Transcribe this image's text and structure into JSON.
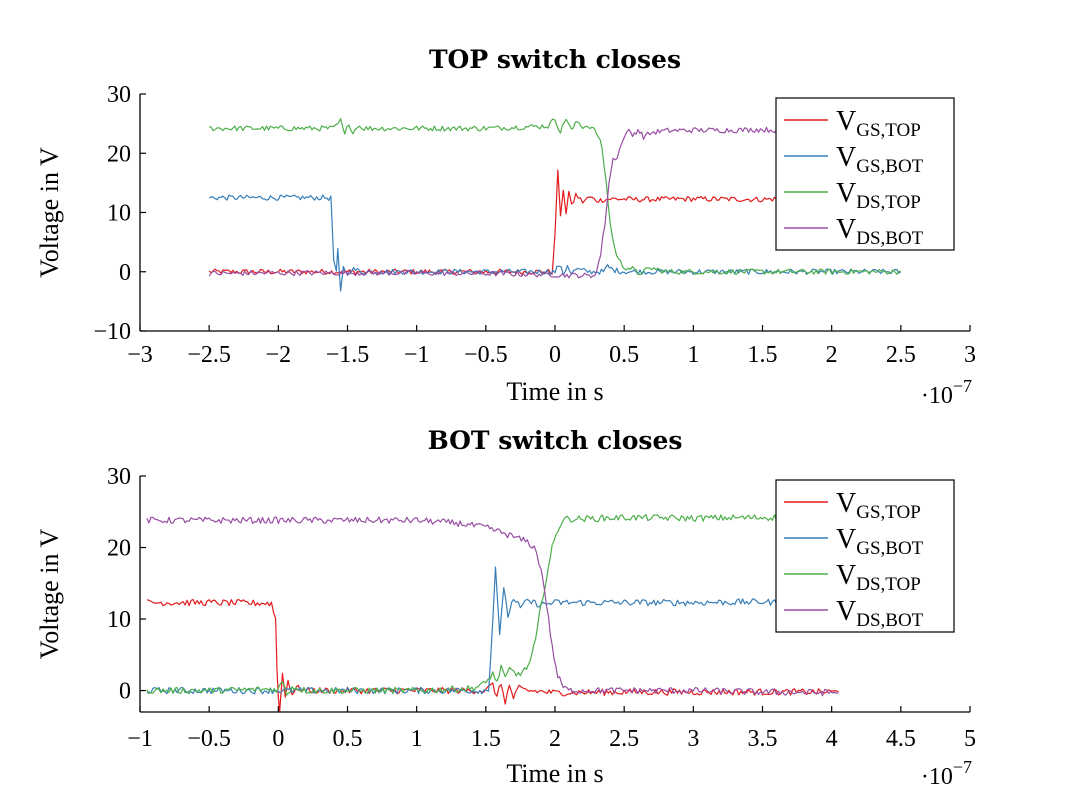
{
  "colors": {
    "V_GS_TOP": "#e41a1c",
    "V_GS_BOT": "#377eb8",
    "V_DS_TOP": "#4daf4a",
    "V_DS_BOT": "#984ea3"
  },
  "chart_data": [
    {
      "type": "line",
      "title": "TOP switch closes",
      "xlabel": "Time in s",
      "ylabel": "Voltage in V",
      "x_multiplier": "·10",
      "x_multiplier_exp": "−7",
      "xlim": [
        -3,
        3
      ],
      "ylim": [
        -10,
        30
      ],
      "xticks": [
        -3,
        -2.5,
        -2,
        -1.5,
        -1,
        -0.5,
        0,
        0.5,
        1,
        1.5,
        2,
        2.5,
        3
      ],
      "xtick_labels": [
        "−3",
        "−2.5",
        "−2",
        "−1.5",
        "−1",
        "−0.5",
        "0",
        "0.5",
        "1",
        "1.5",
        "2",
        "2.5",
        "3"
      ],
      "yticks": [
        -10,
        0,
        10,
        20,
        30
      ],
      "ytick_labels": [
        "−10",
        "0",
        "10",
        "20",
        "30"
      ],
      "legend_position": "top-right",
      "series": [
        {
          "name": "V",
          "sub": "GS,TOP",
          "color_key": "V_GS_TOP",
          "points": [
            [
              -2.5,
              0
            ],
            [
              -2.2,
              0
            ],
            [
              -1.9,
              0
            ],
            [
              -1.6,
              0
            ],
            [
              -1.2,
              0
            ],
            [
              -0.5,
              0
            ],
            [
              -0.02,
              0
            ],
            [
              0,
              6
            ],
            [
              0.02,
              17.3
            ],
            [
              0.04,
              9
            ],
            [
              0.06,
              14
            ],
            [
              0.08,
              10
            ],
            [
              0.1,
              13.5
            ],
            [
              0.12,
              11
            ],
            [
              0.15,
              13
            ],
            [
              0.2,
              11.8
            ],
            [
              0.25,
              12.6
            ],
            [
              0.3,
              12
            ],
            [
              0.4,
              12.3
            ],
            [
              0.6,
              12.2
            ],
            [
              1,
              12.3
            ],
            [
              1.5,
              12.2
            ],
            [
              1.6,
              12.3
            ]
          ]
        },
        {
          "name": "V",
          "sub": "GS,BOT",
          "color_key": "V_GS_BOT",
          "points": [
            [
              -2.5,
              12.5
            ],
            [
              -2.0,
              12.5
            ],
            [
              -1.65,
              12.5
            ],
            [
              -1.62,
              12.4
            ],
            [
              -1.6,
              2
            ],
            [
              -1.58,
              0
            ],
            [
              -1.57,
              3.5
            ],
            [
              -1.56,
              0
            ],
            [
              -1.55,
              -3.5
            ],
            [
              -1.53,
              1
            ],
            [
              -1.5,
              -0.5
            ],
            [
              -1.47,
              0.5
            ],
            [
              -1.4,
              0
            ],
            [
              -1.0,
              0
            ],
            [
              -0.5,
              0
            ],
            [
              0,
              0
            ],
            [
              0.03,
              1.2
            ],
            [
              0.06,
              -0.4
            ],
            [
              0.09,
              1.1
            ],
            [
              0.12,
              -0.3
            ],
            [
              0.15,
              0.4
            ],
            [
              0.25,
              0
            ],
            [
              0.35,
              0
            ],
            [
              0.38,
              0.9
            ],
            [
              0.42,
              0.3
            ],
            [
              0.5,
              0
            ],
            [
              1,
              0
            ],
            [
              1.5,
              0
            ],
            [
              2.5,
              0
            ]
          ]
        },
        {
          "name": "V",
          "sub": "DS,TOP",
          "color_key": "V_DS_TOP",
          "points": [
            [
              -2.5,
              24.2
            ],
            [
              -2.0,
              24.2
            ],
            [
              -1.6,
              24.2
            ],
            [
              -1.55,
              25.5
            ],
            [
              -1.52,
              23
            ],
            [
              -1.49,
              25.2
            ],
            [
              -1.46,
              23.3
            ],
            [
              -1.43,
              24.7
            ],
            [
              -1.38,
              24.2
            ],
            [
              -1.0,
              24.2
            ],
            [
              -0.5,
              24.2
            ],
            [
              -0.05,
              24.6
            ],
            [
              0,
              25.8
            ],
            [
              0.04,
              23.6
            ],
            [
              0.08,
              26
            ],
            [
              0.12,
              23.8
            ],
            [
              0.16,
              25.4
            ],
            [
              0.2,
              24.5
            ],
            [
              0.25,
              24.6
            ],
            [
              0.3,
              23.5
            ],
            [
              0.34,
              21
            ],
            [
              0.37,
              15
            ],
            [
              0.4,
              8
            ],
            [
              0.43,
              4
            ],
            [
              0.46,
              2
            ],
            [
              0.5,
              0.8
            ],
            [
              0.56,
              0.5
            ],
            [
              0.6,
              -0.3
            ],
            [
              0.7,
              0.6
            ],
            [
              0.8,
              0
            ],
            [
              1.0,
              0
            ],
            [
              1.5,
              0
            ],
            [
              2.0,
              0
            ],
            [
              2.5,
              0
            ]
          ]
        },
        {
          "name": "V",
          "sub": "DS,BOT",
          "color_key": "V_DS_BOT",
          "points": [
            [
              -2.5,
              -0.3
            ],
            [
              -2.0,
              -0.2
            ],
            [
              -1.5,
              -0.2
            ],
            [
              -1.0,
              -0.2
            ],
            [
              -0.5,
              -0.3
            ],
            [
              0,
              -0.5
            ],
            [
              0.1,
              -0.6
            ],
            [
              0.2,
              -0.6
            ],
            [
              0.26,
              -0.8
            ],
            [
              0.3,
              0
            ],
            [
              0.33,
              3
            ],
            [
              0.36,
              8
            ],
            [
              0.39,
              15
            ],
            [
              0.42,
              19
            ],
            [
              0.45,
              19.5
            ],
            [
              0.48,
              21.5
            ],
            [
              0.5,
              22.5
            ],
            [
              0.52,
              24
            ],
            [
              0.56,
              23
            ],
            [
              0.6,
              24
            ],
            [
              0.64,
              22.8
            ],
            [
              0.7,
              23.5
            ],
            [
              0.8,
              23.8
            ],
            [
              1.0,
              23.9
            ],
            [
              1.3,
              23.9
            ],
            [
              1.5,
              24
            ],
            [
              1.6,
              23.9
            ]
          ]
        }
      ]
    },
    {
      "type": "line",
      "title": "BOT switch closes",
      "xlabel": "Time in s",
      "ylabel": "Voltage in V",
      "x_multiplier": "·10",
      "x_multiplier_exp": "−7",
      "xlim": [
        -1,
        5
      ],
      "ylim": [
        -3,
        30
      ],
      "xticks": [
        -1,
        -0.5,
        0,
        0.5,
        1,
        1.5,
        2,
        2.5,
        3,
        3.5,
        4,
        4.5,
        5
      ],
      "xtick_labels": [
        "−1",
        "−0.5",
        "0",
        "0.5",
        "1",
        "1.5",
        "2",
        "2.5",
        "3",
        "3.5",
        "4",
        "4.5",
        "5"
      ],
      "yticks": [
        0,
        10,
        20,
        30
      ],
      "ytick_labels": [
        "0",
        "10",
        "20",
        "30"
      ],
      "legend_position": "top-right",
      "series": [
        {
          "name": "V",
          "sub": "GS,TOP",
          "color_key": "V_GS_TOP",
          "points": [
            [
              -0.95,
              12.3
            ],
            [
              -0.5,
              12.3
            ],
            [
              -0.05,
              12.2
            ],
            [
              -0.02,
              10
            ],
            [
              -0.01,
              3
            ],
            [
              0,
              -0.5
            ],
            [
              0.01,
              -3
            ],
            [
              0.03,
              2.5
            ],
            [
              0.05,
              -1
            ],
            [
              0.07,
              1.5
            ],
            [
              0.1,
              -0.5
            ],
            [
              0.13,
              0.4
            ],
            [
              0.2,
              0
            ],
            [
              0.5,
              0
            ],
            [
              1.0,
              0
            ],
            [
              1.5,
              0
            ],
            [
              1.55,
              0.8
            ],
            [
              1.58,
              -0.8
            ],
            [
              1.61,
              1
            ],
            [
              1.64,
              -1.5
            ],
            [
              1.67,
              0.6
            ],
            [
              1.7,
              -1
            ],
            [
              1.74,
              0.3
            ],
            [
              1.8,
              0
            ],
            [
              2.0,
              -0.3
            ],
            [
              2.5,
              -0.2
            ],
            [
              3.0,
              -0.2
            ],
            [
              3.5,
              -0.2
            ],
            [
              4.05,
              -0.2
            ]
          ]
        },
        {
          "name": "V",
          "sub": "GS,BOT",
          "color_key": "V_GS_BOT",
          "points": [
            [
              -0.95,
              0
            ],
            [
              -0.5,
              0
            ],
            [
              0,
              0
            ],
            [
              0.5,
              0
            ],
            [
              1.0,
              0
            ],
            [
              1.5,
              0
            ],
            [
              1.52,
              0
            ],
            [
              1.55,
              10
            ],
            [
              1.57,
              17.3
            ],
            [
              1.6,
              8
            ],
            [
              1.63,
              14
            ],
            [
              1.66,
              10.5
            ],
            [
              1.7,
              13
            ],
            [
              1.75,
              11.5
            ],
            [
              1.8,
              12.5
            ],
            [
              1.9,
              12
            ],
            [
              2.0,
              12.3
            ],
            [
              2.5,
              12.3
            ],
            [
              3.0,
              12.3
            ],
            [
              3.5,
              12.4
            ],
            [
              3.6,
              12.3
            ]
          ]
        },
        {
          "name": "V",
          "sub": "DS,TOP",
          "color_key": "V_DS_TOP",
          "points": [
            [
              -0.95,
              0
            ],
            [
              -0.5,
              0
            ],
            [
              0,
              0.2
            ],
            [
              0.03,
              1.3
            ],
            [
              0.06,
              -0.5
            ],
            [
              0.1,
              0.5
            ],
            [
              0.2,
              0
            ],
            [
              0.5,
              0
            ],
            [
              1.0,
              0
            ],
            [
              1.4,
              0.3
            ],
            [
              1.5,
              1
            ],
            [
              1.55,
              2.5
            ],
            [
              1.58,
              1
            ],
            [
              1.61,
              3.5
            ],
            [
              1.64,
              1.5
            ],
            [
              1.67,
              3
            ],
            [
              1.72,
              2.2
            ],
            [
              1.78,
              2.8
            ],
            [
              1.82,
              4
            ],
            [
              1.86,
              7
            ],
            [
              1.9,
              12
            ],
            [
              1.94,
              16
            ],
            [
              1.98,
              20
            ],
            [
              2.02,
              22.5
            ],
            [
              2.06,
              24
            ],
            [
              2.2,
              24
            ],
            [
              2.5,
              24.2
            ],
            [
              3.0,
              24.1
            ],
            [
              3.5,
              24.2
            ],
            [
              4.0,
              24.3
            ],
            [
              4.05,
              24.2
            ]
          ]
        },
        {
          "name": "V",
          "sub": "DS,BOT",
          "color_key": "V_DS_BOT",
          "points": [
            [
              -0.95,
              23.8
            ],
            [
              -0.5,
              23.8
            ],
            [
              0,
              23.8
            ],
            [
              0.5,
              23.8
            ],
            [
              1.0,
              23.8
            ],
            [
              1.3,
              23.4
            ],
            [
              1.5,
              22.8
            ],
            [
              1.6,
              22.2
            ],
            [
              1.7,
              21.5
            ],
            [
              1.8,
              20.8
            ],
            [
              1.85,
              20
            ],
            [
              1.9,
              17
            ],
            [
              1.94,
              12
            ],
            [
              1.98,
              6
            ],
            [
              2.02,
              2
            ],
            [
              2.06,
              0.5
            ],
            [
              2.1,
              0
            ],
            [
              2.5,
              0
            ],
            [
              3.0,
              0
            ],
            [
              3.5,
              -0.2
            ],
            [
              4.05,
              -0.3
            ]
          ]
        }
      ]
    }
  ]
}
